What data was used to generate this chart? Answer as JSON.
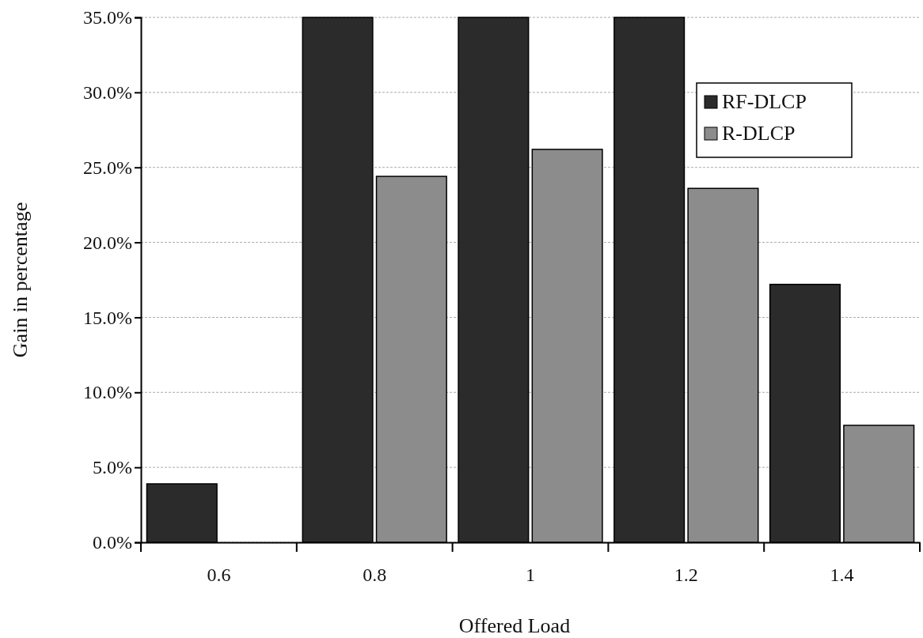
{
  "chart_data": {
    "type": "bar",
    "xlabel": "Offered Load",
    "ylabel": "Gain in percentage",
    "categories": [
      "0.6",
      "0.8",
      "1",
      "1.2",
      "1.4"
    ],
    "series": [
      {
        "name": "RF-DLCP",
        "color": "#2b2b2b",
        "values": [
          3.9,
          35,
          35,
          35,
          17.2
        ]
      },
      {
        "name": "R-DLCP",
        "color": "#8c8c8c",
        "values": [
          0,
          24.4,
          26.2,
          23.6,
          7.8
        ]
      }
    ],
    "ylim": [
      0,
      35
    ],
    "yticks": [
      {
        "value": 0,
        "label": "0.0%"
      },
      {
        "value": 5,
        "label": "5.0%"
      },
      {
        "value": 10,
        "label": "10.0%"
      },
      {
        "value": 15,
        "label": "15.0%"
      },
      {
        "value": 20,
        "label": "20.0%"
      },
      {
        "value": 25,
        "label": "25.0%"
      },
      {
        "value": 30,
        "label": "30.0%"
      },
      {
        "value": 35,
        "label": "35.0%"
      }
    ],
    "grid": "y",
    "legend": "top right"
  }
}
